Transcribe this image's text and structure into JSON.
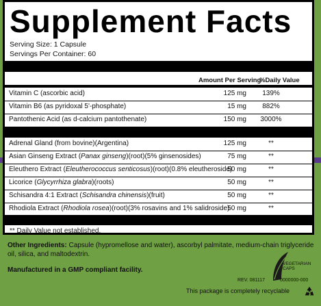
{
  "title": "Supplement Facts",
  "serving_size": "Serving Size: 1 Capsule",
  "servings_per_container": "Servings Per Container: 60",
  "header": {
    "amount": "Amount Per Serving",
    "dv": "%Daily Value"
  },
  "vitamins": [
    {
      "name": "Vitamin C (ascorbic acid)",
      "amount": "125 mg",
      "dv": "139%"
    },
    {
      "name": "Vitamin B6 (as pyridoxal 5'-phosphate)",
      "amount": "15 mg",
      "dv": "882%"
    },
    {
      "name": "Pantothenic Acid (as d-calcium pantothenate)",
      "amount": "150 mg",
      "dv": "3000%"
    }
  ],
  "herbals": [
    {
      "name_pre": "Adrenal Gland (from bovine)(Argentina)",
      "latin": "",
      "name_post": "",
      "amount": "125 mg",
      "dv": "**"
    },
    {
      "name_pre": "Asian Ginseng Extract (",
      "latin": "Panax ginseng",
      "name_post": ")(root)(5% ginsenosides)",
      "amount": "75 mg",
      "dv": "**"
    },
    {
      "name_pre": "Eleuthero Extract (",
      "latin": "Eleutherococcus senticosus",
      "name_post": ")(root)(0.8% eleutheroside)",
      "amount": "50 mg",
      "dv": "**"
    },
    {
      "name_pre": "Licorice (",
      "latin": "Glycyrrhiza glabra",
      "name_post": ")(roots)",
      "amount": "50 mg",
      "dv": "**"
    },
    {
      "name_pre": "Schisandra 4:1 Extract (",
      "latin": "Schisandra chinensis",
      "name_post": ")(fruit)",
      "amount": "50 mg",
      "dv": "**"
    },
    {
      "name_pre": "Rhodiola Extract (",
      "latin": "Rhodiola rosea",
      "name_post": ")(root)(3% rosavins and 1% salidroside)",
      "amount": "50 mg",
      "dv": "**"
    }
  ],
  "footnote": "** Daily Value not established.",
  "other_ingredients_label": "Other Ingredients:",
  "other_ingredients": " Capsule (hypromellose and water), ascorbyl palmitate, medium-chain triglyceride oil, silica, and maltodextrin.",
  "gmp": "Manufactured in a GMP compliant facility.",
  "veg_caps": "VEGETARIAN CAPS",
  "rev": "REV. 081117",
  "code": "0000000-000",
  "recyclable": "This package is completely recyclable",
  "colors": {
    "background": "#6fa043",
    "strip": "#5a3a8c",
    "panel": "#ffffff"
  },
  "icons": [
    "leaf-icon",
    "recycle-icon"
  ]
}
